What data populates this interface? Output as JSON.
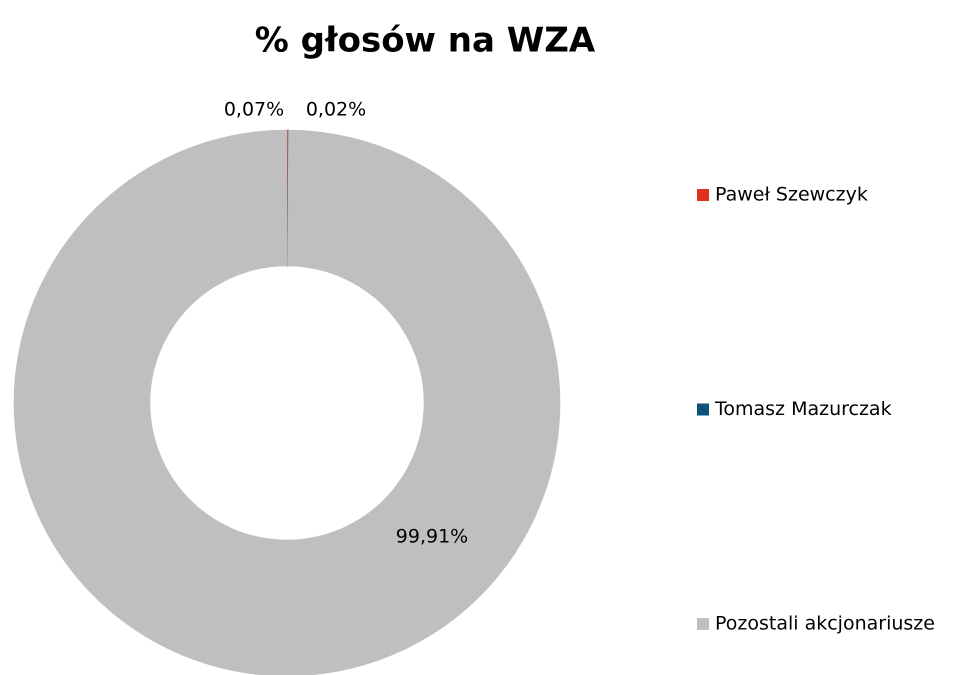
{
  "chart_data": {
    "type": "donut",
    "title": "% głosów na WZA",
    "series": [
      {
        "name": "Paweł Szewczyk",
        "color": "#e0301e",
        "values": [
          0.07
        ],
        "value_labels": [
          "0,07%"
        ]
      },
      {
        "name": "Tomasz Mazurczak",
        "color": "#0e5179",
        "values": [
          0.02
        ],
        "value_labels": [
          "0,02%"
        ]
      },
      {
        "name": "Pozostali akcjonariusze",
        "color": "#bfbfbf",
        "values": [
          99.91
        ],
        "value_labels": [
          "99,91%"
        ]
      }
    ],
    "legend": "right"
  }
}
